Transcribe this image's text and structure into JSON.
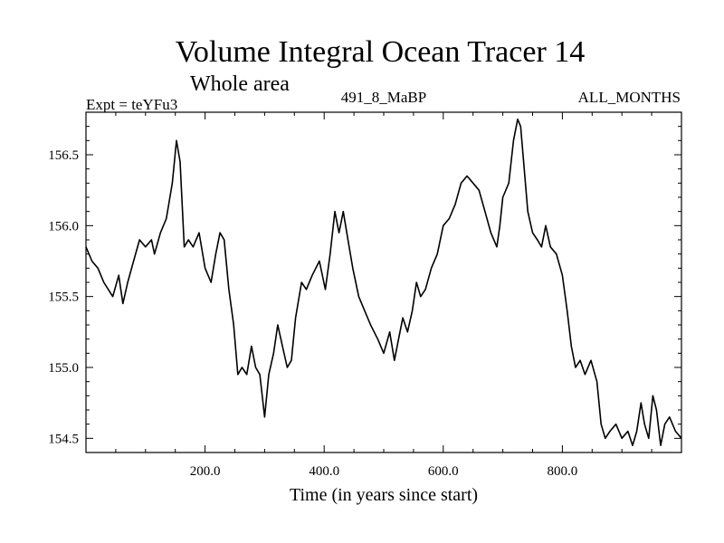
{
  "chart_data": {
    "type": "line",
    "title": "Volume Integral Ocean Tracer 14",
    "subtitle": "Whole area",
    "left_label": "Expt = teYFu3",
    "center_label": "491_8_MaBP",
    "right_label": "ALL_MONTHS",
    "xlabel": "Time (in years since start)",
    "ylabel": "",
    "xlim": [
      0,
      1000
    ],
    "ylim": [
      154.4,
      156.8
    ],
    "xticks": [
      200,
      400,
      600,
      800
    ],
    "xtick_labels": [
      "200.0",
      "400.0",
      "600.0",
      "800.0"
    ],
    "yticks": [
      154.5,
      155.0,
      155.5,
      156.0,
      156.5
    ],
    "ytick_labels": [
      "154.5",
      "155.0",
      "155.5",
      "156.0",
      "156.5"
    ],
    "series": [
      {
        "name": "Tracer 14",
        "x": [
          0,
          10,
          20,
          30,
          45,
          55,
          62,
          70,
          80,
          90,
          100,
          110,
          115,
          125,
          135,
          145,
          152,
          158,
          165,
          172,
          180,
          190,
          200,
          210,
          218,
          225,
          232,
          240,
          248,
          255,
          262,
          270,
          278,
          285,
          292,
          300,
          307,
          315,
          322,
          330,
          338,
          345,
          352,
          362,
          370,
          380,
          392,
          402,
          410,
          418,
          425,
          432,
          440,
          448,
          458,
          468,
          478,
          490,
          500,
          510,
          518,
          525,
          532,
          540,
          548,
          555,
          562,
          570,
          580,
          590,
          600,
          610,
          620,
          630,
          640,
          650,
          660,
          670,
          680,
          690,
          695,
          700,
          710,
          718,
          725,
          730,
          735,
          742,
          750,
          758,
          765,
          772,
          780,
          790,
          800,
          808,
          815,
          822,
          830,
          838,
          848,
          858,
          865,
          872,
          880,
          890,
          900,
          910,
          918,
          925,
          932,
          938,
          945,
          952,
          958,
          965,
          972,
          980,
          990,
          1000
        ],
        "values": [
          155.85,
          155.75,
          155.7,
          155.6,
          155.5,
          155.65,
          155.45,
          155.6,
          155.75,
          155.9,
          155.85,
          155.9,
          155.8,
          155.95,
          156.05,
          156.3,
          156.6,
          156.45,
          155.85,
          155.9,
          155.85,
          155.95,
          155.7,
          155.6,
          155.8,
          155.95,
          155.9,
          155.55,
          155.3,
          154.95,
          155.0,
          154.95,
          155.15,
          155.0,
          154.95,
          154.65,
          154.95,
          155.1,
          155.3,
          155.15,
          155.0,
          155.05,
          155.35,
          155.6,
          155.55,
          155.65,
          155.75,
          155.55,
          155.8,
          156.1,
          155.95,
          156.1,
          155.9,
          155.7,
          155.5,
          155.4,
          155.3,
          155.2,
          155.1,
          155.25,
          155.05,
          155.2,
          155.35,
          155.25,
          155.4,
          155.6,
          155.5,
          155.55,
          155.7,
          155.8,
          156.0,
          156.05,
          156.15,
          156.3,
          156.35,
          156.3,
          156.25,
          156.1,
          155.95,
          155.85,
          156.0,
          156.2,
          156.3,
          156.6,
          156.75,
          156.7,
          156.45,
          156.1,
          155.95,
          155.9,
          155.85,
          156.0,
          155.85,
          155.8,
          155.65,
          155.4,
          155.15,
          155.0,
          155.05,
          154.95,
          155.05,
          154.9,
          154.6,
          154.5,
          154.55,
          154.6,
          154.5,
          154.55,
          154.45,
          154.55,
          154.75,
          154.6,
          154.5,
          154.8,
          154.7,
          154.45,
          154.6,
          154.65,
          154.55,
          154.5
        ]
      }
    ]
  }
}
